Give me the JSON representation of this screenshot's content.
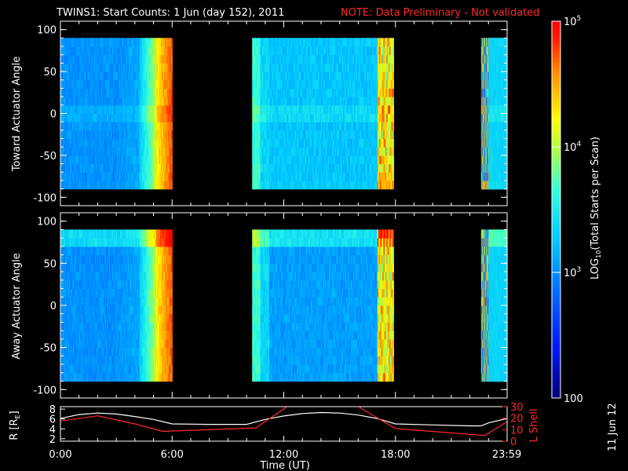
{
  "header": {
    "title": "TWINS1: Start Counts:  1 Jun (day 152), 2011",
    "note": "NOTE: Data Preliminary - Not validated"
  },
  "side_note": "11 Jun 12",
  "colors": {
    "background": "#000000",
    "text": "#ffffff",
    "note": "#ff2a2a",
    "r_line": "#ffffff",
    "lshell_line": "#ff2a2a"
  },
  "chart_data": [
    {
      "type": "heatmap",
      "name": "toward",
      "ylabel": "Toward Actuator Angle",
      "ylim": [
        -110,
        110
      ],
      "yticks": [
        100,
        50,
        0,
        -50,
        -100
      ],
      "xlim": [
        0,
        24
      ],
      "data_y_range": [
        -90,
        90
      ],
      "data_intervals_hours": [
        [
          0,
          6.0
        ],
        [
          10.3,
          17.9
        ],
        [
          22.6,
          24
        ]
      ]
    },
    {
      "type": "heatmap",
      "name": "away",
      "ylabel": "Away Actuator Angle",
      "ylim": [
        -110,
        110
      ],
      "yticks": [
        100,
        50,
        0,
        -50,
        -100
      ],
      "xlim": [
        0,
        24
      ],
      "data_y_range": [
        -90,
        90
      ],
      "data_intervals_hours": [
        [
          0,
          6.0
        ],
        [
          10.3,
          17.9
        ],
        [
          22.6,
          24
        ]
      ]
    },
    {
      "type": "line",
      "name": "ephemeris",
      "xlabel": "Time (UT)",
      "xtick_labels": [
        "0:00",
        "6:00",
        "12:00",
        "18:00",
        "23:59"
      ],
      "xtick_hours": [
        0,
        6,
        12,
        18,
        23.983
      ],
      "ylabel_left": "R [R",
      "ylabel_left_sub": "E",
      "ylabel_left_end": "]",
      "ylabel_right": "L Shell",
      "yticks_left": [
        2,
        4,
        6,
        8
      ],
      "ylim_left": [
        1.5,
        8.5
      ],
      "yticks_right": [
        0,
        10,
        20,
        30
      ],
      "ylim_right": [
        0,
        30
      ],
      "series": [
        {
          "name": "R",
          "axis": "left",
          "x": [
            0,
            1,
            2,
            3,
            4,
            5,
            6,
            8,
            10,
            11,
            12,
            13,
            14,
            15,
            16,
            17,
            18,
            20,
            22,
            22.6,
            23,
            24
          ],
          "y": [
            6.1,
            6.9,
            7.2,
            7.0,
            6.5,
            5.9,
            5.0,
            4.9,
            4.9,
            5.9,
            6.6,
            7.1,
            7.3,
            7.2,
            6.8,
            6.1,
            5.0,
            4.8,
            4.6,
            4.6,
            5.2,
            6.1
          ]
        },
        {
          "name": "L Shell",
          "axis": "right",
          "x": [
            0,
            2,
            4,
            5.5,
            10.5,
            12,
            12.3,
            15.9,
            16.2,
            18.0,
            22.8,
            24
          ],
          "y": [
            17.5,
            22.0,
            15.0,
            8.5,
            11.5,
            28,
            32,
            32,
            28,
            11.0,
            5.0,
            17.0
          ]
        }
      ]
    },
    {
      "type": "colorbar",
      "scale": "log",
      "title": "LOG",
      "title_sub": "10",
      "title_end": "(Total Starts per Scan)",
      "range": [
        100,
        100000
      ],
      "ticks": [
        {
          "base": "10",
          "exp": "5",
          "value": 100000
        },
        {
          "base": "10",
          "exp": "4",
          "value": 10000
        },
        {
          "base": "10",
          "exp": "3",
          "value": 1000
        },
        {
          "base": "100",
          "exp": "",
          "value": 100
        }
      ]
    }
  ]
}
